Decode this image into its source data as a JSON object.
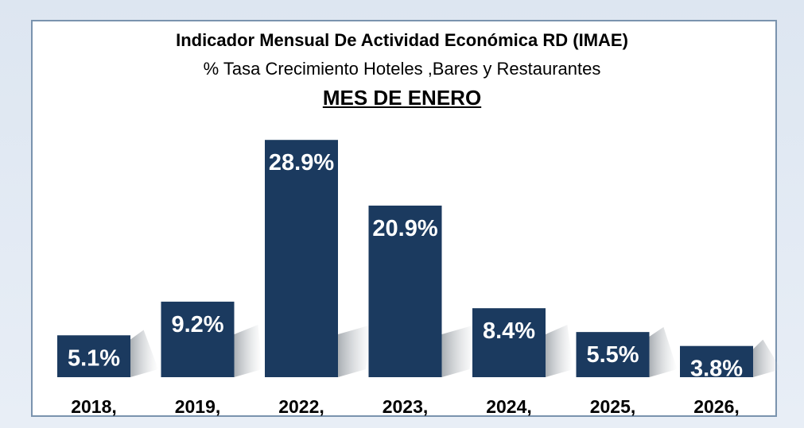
{
  "chart_data": {
    "type": "bar",
    "title": "Indicador Mensual De Actividad Económica RD (IMAE)",
    "subtitle": "% Tasa Crecimiento Hoteles ,Bares y Restaurantes",
    "heading": "MES DE ENERO",
    "categories": [
      "2018,",
      "2019,",
      "2022,",
      "2023,",
      "2024,",
      "2025,",
      "2026,"
    ],
    "values": [
      5.1,
      9.2,
      28.9,
      20.9,
      8.4,
      5.5,
      3.8
    ],
    "data_labels": [
      "5.1%",
      "9.2%",
      "28.9%",
      "20.9%",
      "8.4%",
      "5.5%",
      "3.8%"
    ],
    "xlabel": "",
    "ylabel": "",
    "ylim": [
      0,
      30
    ],
    "grid": false,
    "legend": "none",
    "bar_color": "#1b3a5f",
    "label_color": "#ffffff"
  }
}
